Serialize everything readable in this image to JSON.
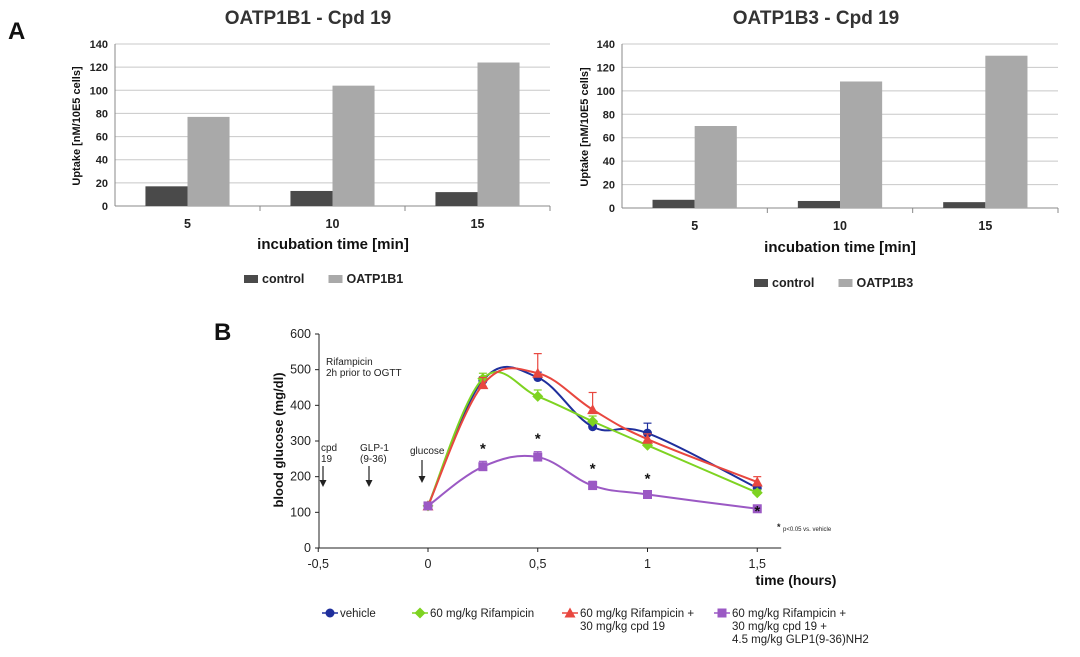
{
  "panel_a_label": "A",
  "panel_b_label": "B",
  "chart_data": [
    {
      "type": "bar",
      "title": "OATP1B1 - Cpd 19",
      "xlabel": "incubation time [min]",
      "ylabel": "Uptake [nM/10E5 cells]",
      "categories": [
        "5",
        "10",
        "15"
      ],
      "yticks": [
        "0",
        "20",
        "40",
        "60",
        "80",
        "100",
        "120",
        "140"
      ],
      "ylim": [
        0,
        140
      ],
      "grid": true,
      "legend_position": "bottom",
      "series": [
        {
          "name": "control",
          "color": "#4a4a4a",
          "values": [
            17,
            13,
            12
          ]
        },
        {
          "name": "OATP1B1",
          "color": "#a9a9a9",
          "values": [
            77,
            104,
            124
          ]
        }
      ]
    },
    {
      "type": "bar",
      "title": "OATP1B3 - Cpd 19",
      "xlabel": "incubation time [min]",
      "ylabel": "Uptake [nM/10E5 cells]",
      "categories": [
        "5",
        "10",
        "15"
      ],
      "yticks": [
        "0",
        "20",
        "40",
        "60",
        "80",
        "100",
        "120",
        "140"
      ],
      "ylim": [
        0,
        140
      ],
      "grid": true,
      "legend_position": "bottom",
      "series": [
        {
          "name": "control",
          "color": "#4a4a4a",
          "values": [
            7,
            6,
            5
          ]
        },
        {
          "name": "OATP1B3",
          "color": "#a9a9a9",
          "values": [
            70,
            108,
            130
          ]
        }
      ]
    },
    {
      "type": "line",
      "title": "",
      "xlabel": "time (hours)",
      "ylabel": "blood glucose (mg/dl)",
      "xlim": [
        -0.5,
        1.6
      ],
      "ylim": [
        0,
        600
      ],
      "xticks": [
        "-0,5",
        "0",
        "0,5",
        "1",
        "1,5"
      ],
      "yticks": [
        "0",
        "100",
        "200",
        "300",
        "400",
        "500",
        "600"
      ],
      "legend_position": "bottom",
      "annotations": {
        "rifampicin": [
          "Rifampicin",
          "2h prior to OGTT"
        ],
        "cpd": [
          "cpd",
          "19"
        ],
        "glp": [
          "GLP-1",
          "(9-36)"
        ],
        "glucose": "glucose",
        "significance": "p<0.05 vs. vehicle",
        "star": "*"
      },
      "series": [
        {
          "name": "vehicle",
          "legend_lines": [
            "vehicle"
          ],
          "color": "#1f2f9c",
          "marker": "circle",
          "x": [
            0,
            0.25,
            0.5,
            0.75,
            1,
            1.5
          ],
          "y": [
            118,
            470,
            478,
            340,
            322,
            168
          ],
          "err": [
            0,
            10,
            15,
            12,
            28,
            10
          ]
        },
        {
          "name": "60 mg/kg Rifampicin",
          "legend_lines": [
            "60 mg/kg Rifampicin"
          ],
          "color": "#7ed321",
          "marker": "diamond",
          "x": [
            0,
            0.25,
            0.5,
            0.75,
            1,
            1.5
          ],
          "y": [
            118,
            475,
            425,
            355,
            288,
            155
          ],
          "err": [
            0,
            15,
            18,
            15,
            12,
            8
          ]
        },
        {
          "name": "60 mg/kg Rifampicin + 30 mg/kg cpd 19",
          "legend_lines": [
            "60 mg/kg Rifampicin +",
            "30 mg/kg cpd 19"
          ],
          "color": "#e8473f",
          "marker": "triangle",
          "x": [
            0,
            0.25,
            0.5,
            0.75,
            1,
            1.5
          ],
          "y": [
            118,
            458,
            490,
            388,
            305,
            185
          ],
          "err": [
            0,
            20,
            55,
            48,
            15,
            15
          ]
        },
        {
          "name": "60 mg/kg Rifampicin + 30 mg/kg cpd 19 + 4.5 mg/kg GLP1(9-36)NH2",
          "legend_lines": [
            "60 mg/kg Rifampicin +",
            "30 mg/kg cpd 19 +",
            "4.5 mg/kg GLP1(9-36)NH2"
          ],
          "color": "#9b59c4",
          "marker": "square",
          "x": [
            0,
            0.25,
            0.5,
            0.75,
            1,
            1.5
          ],
          "y": [
            118,
            228,
            255,
            175,
            150,
            110
          ],
          "err": [
            0,
            15,
            15,
            12,
            8,
            8
          ]
        }
      ]
    }
  ]
}
